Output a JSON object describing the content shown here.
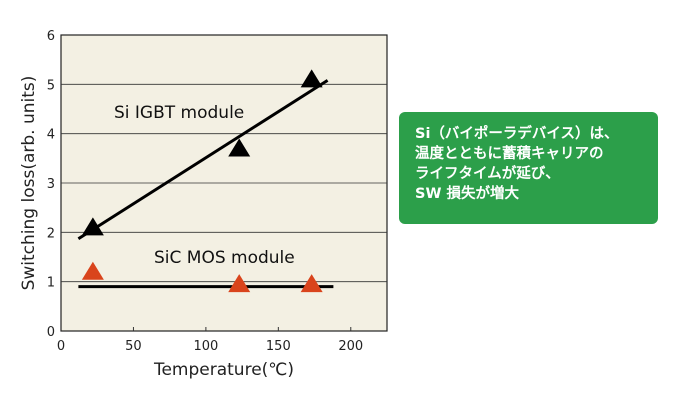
{
  "chart_data": {
    "type": "scatter",
    "title": "",
    "xlabel": "Temperature(℃)",
    "ylabel": "Switching loss(arb. units)",
    "xlim": [
      0,
      225
    ],
    "ylim": [
      0,
      6
    ],
    "x_ticks": [
      "0",
      "50",
      "100",
      "150",
      "200"
    ],
    "y_ticks": [
      "0",
      "1",
      "2",
      "3",
      "4",
      "5",
      "6"
    ],
    "grid": "horizontal",
    "series": [
      {
        "name": "Si IGBT module",
        "color": "#000000",
        "x": [
          22,
          123,
          173
        ],
        "y": [
          2.1,
          3.7,
          5.1
        ],
        "trend": [
          [
            12,
            1.87
          ],
          [
            184,
            5.08
          ]
        ]
      },
      {
        "name": "SiC MOS module",
        "color": "#d9441c",
        "x": [
          22,
          123,
          173
        ],
        "y": [
          1.2,
          0.95,
          0.95
        ],
        "trend": [
          [
            12,
            0.9
          ],
          [
            188,
            0.9
          ]
        ]
      }
    ],
    "annotations": [
      "Si IGBT module",
      "SiC MOS module"
    ]
  },
  "note": {
    "lines": [
      "Si（バイポーラデバイス）は、",
      "温度とともに蓄積キャリアの",
      "ライフタイムが延び、",
      "SW 損失が増大"
    ],
    "color": "#2c9f4a"
  }
}
